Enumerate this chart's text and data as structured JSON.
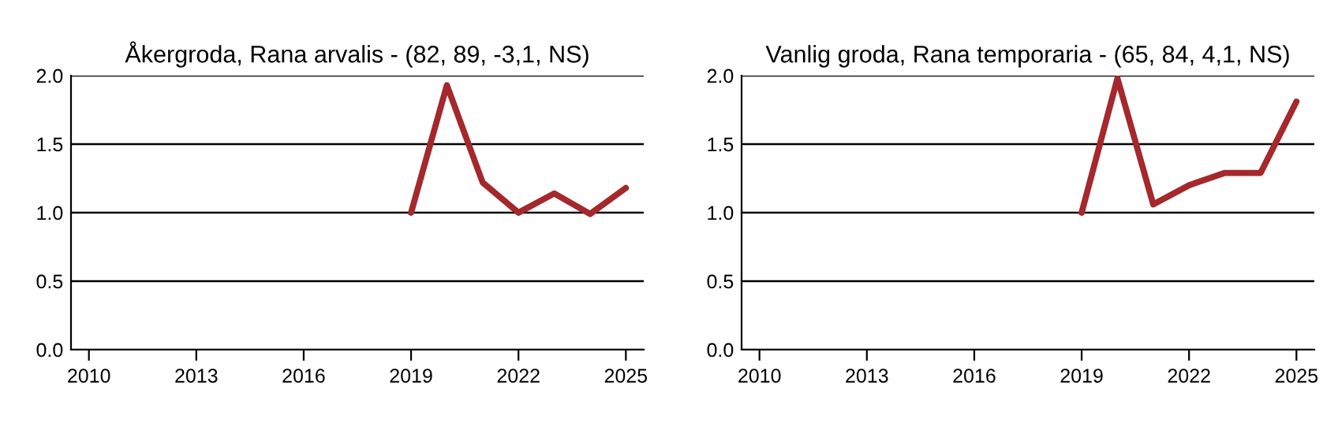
{
  "chart_data": [
    {
      "type": "line",
      "title": "Åkergroda, Rana arvalis - (82, 89, -3,1, NS)",
      "x": [
        2019,
        2020,
        2021,
        2022,
        2023,
        2024,
        2025
      ],
      "series": [
        {
          "color": "#a4282c",
          "values": [
            1.0,
            1.93,
            1.22,
            1.0,
            1.14,
            0.99,
            1.18
          ]
        }
      ],
      "xlim": [
        2009.5,
        2025.5
      ],
      "xticks": [
        2010,
        2013,
        2016,
        2019,
        2022,
        2025
      ],
      "ylim": [
        0,
        2
      ],
      "yticks": [
        {
          "value": 0,
          "label": "0.0"
        },
        {
          "value": 0.5,
          "label": "0.5"
        },
        {
          "value": 1,
          "label": "1.0"
        },
        {
          "value": 1.5,
          "label": "1.5"
        },
        {
          "value": 2,
          "label": "2.0"
        }
      ],
      "grid": "y"
    },
    {
      "type": "line",
      "title": "Vanlig groda, Rana temporaria - (65, 84, 4,1, NS)",
      "x": [
        2019,
        2020,
        2021,
        2022,
        2023,
        2024,
        2025
      ],
      "series": [
        {
          "color": "#a4282c",
          "values": [
            1.0,
            1.98,
            1.06,
            1.2,
            1.29,
            1.29,
            1.81
          ]
        }
      ],
      "xlim": [
        2009.5,
        2025.5
      ],
      "xticks": [
        2010,
        2013,
        2016,
        2019,
        2022,
        2025
      ],
      "ylim": [
        0,
        2
      ],
      "yticks": [
        {
          "value": 0,
          "label": "0.0"
        },
        {
          "value": 0.5,
          "label": "0.5"
        },
        {
          "value": 1,
          "label": "1.0"
        },
        {
          "value": 1.5,
          "label": "1.5"
        },
        {
          "value": 2,
          "label": "2.0"
        }
      ],
      "grid": "y"
    }
  ]
}
